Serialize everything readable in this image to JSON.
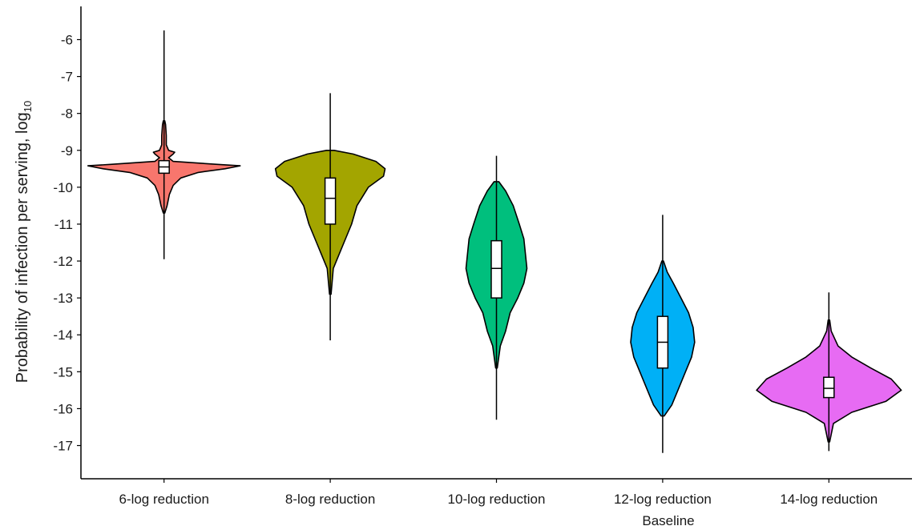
{
  "chart_data": {
    "type": "violin",
    "title": "",
    "xlabel": "Baseline",
    "ylabel_main": "Probability of infection per serving, log",
    "ylabel_sub": "10",
    "ylim": [
      -17.9,
      -5.1
    ],
    "yticks": [
      -6,
      -7,
      -8,
      -9,
      -10,
      -11,
      -12,
      -13,
      -14,
      -15,
      -16,
      -17
    ],
    "grid": false,
    "legend": "none",
    "categories": [
      "6-log reduction",
      "8-log reduction",
      "10-log reduction",
      "12-log reduction",
      "14-log reduction"
    ],
    "series": [
      {
        "category": "6-log reduction",
        "color": "#F8766D",
        "whisker": [
          -11.95,
          -5.75
        ],
        "box": [
          -9.62,
          -9.28
        ],
        "median": -9.45,
        "violin": [
          [
            -10.7,
            0.01
          ],
          [
            -10.5,
            0.04
          ],
          [
            -10.2,
            0.07
          ],
          [
            -9.95,
            0.12
          ],
          [
            -9.75,
            0.22
          ],
          [
            -9.6,
            0.45
          ],
          [
            -9.5,
            0.8
          ],
          [
            -9.42,
            1.0
          ],
          [
            -9.38,
            0.7
          ],
          [
            -9.3,
            0.12
          ],
          [
            -9.2,
            0.06
          ],
          [
            -9.1,
            0.12
          ],
          [
            -9.05,
            0.14
          ],
          [
            -9.0,
            0.06
          ],
          [
            -8.85,
            0.03
          ],
          [
            -8.6,
            0.03
          ],
          [
            -8.3,
            0.02
          ],
          [
            -8.2,
            0.01
          ]
        ]
      },
      {
        "category": "8-log reduction",
        "color": "#A3A500",
        "whisker": [
          -14.15,
          -7.45
        ],
        "box": [
          -11.0,
          -9.75
        ],
        "median": -10.3,
        "violin": [
          [
            -12.9,
            0.01
          ],
          [
            -12.2,
            0.04
          ],
          [
            -11.8,
            0.12
          ],
          [
            -11.5,
            0.18
          ],
          [
            -11.0,
            0.28
          ],
          [
            -10.5,
            0.35
          ],
          [
            -10.0,
            0.5
          ],
          [
            -9.7,
            0.7
          ],
          [
            -9.5,
            0.72
          ],
          [
            -9.3,
            0.6
          ],
          [
            -9.1,
            0.3
          ],
          [
            -9.0,
            0.05
          ]
        ]
      },
      {
        "category": "10-log reduction",
        "color": "#00BF7D",
        "whisker": [
          -16.3,
          -9.15
        ],
        "box": [
          -13.0,
          -11.45
        ],
        "median": -12.2,
        "violin": [
          [
            -14.9,
            0.01
          ],
          [
            -14.3,
            0.05
          ],
          [
            -13.9,
            0.12
          ],
          [
            -13.4,
            0.18
          ],
          [
            -13.0,
            0.28
          ],
          [
            -12.6,
            0.36
          ],
          [
            -12.2,
            0.4
          ],
          [
            -11.8,
            0.38
          ],
          [
            -11.4,
            0.36
          ],
          [
            -11.0,
            0.3
          ],
          [
            -10.5,
            0.22
          ],
          [
            -10.1,
            0.12
          ],
          [
            -9.85,
            0.03
          ]
        ]
      },
      {
        "category": "12-log reduction",
        "color": "#00B0F6",
        "whisker": [
          -17.2,
          -10.75
        ],
        "box": [
          -14.9,
          -13.5
        ],
        "median": -14.2,
        "violin": [
          [
            -16.2,
            0.02
          ],
          [
            -15.9,
            0.12
          ],
          [
            -15.5,
            0.2
          ],
          [
            -15.0,
            0.3
          ],
          [
            -14.6,
            0.38
          ],
          [
            -14.2,
            0.42
          ],
          [
            -13.8,
            0.4
          ],
          [
            -13.4,
            0.34
          ],
          [
            -13.0,
            0.24
          ],
          [
            -12.6,
            0.14
          ],
          [
            -12.3,
            0.06
          ],
          [
            -12.0,
            0.01
          ]
        ]
      },
      {
        "category": "14-log reduction",
        "color": "#E76BF3",
        "whisker": [
          -17.15,
          -12.85
        ],
        "box": [
          -15.7,
          -15.15
        ],
        "median": -15.45,
        "violin": [
          [
            -16.9,
            0.01
          ],
          [
            -16.4,
            0.06
          ],
          [
            -16.1,
            0.3
          ],
          [
            -15.8,
            0.75
          ],
          [
            -15.5,
            0.95
          ],
          [
            -15.2,
            0.82
          ],
          [
            -14.9,
            0.55
          ],
          [
            -14.6,
            0.3
          ],
          [
            -14.3,
            0.12
          ],
          [
            -13.9,
            0.03
          ],
          [
            -13.6,
            0.01
          ]
        ]
      }
    ]
  }
}
